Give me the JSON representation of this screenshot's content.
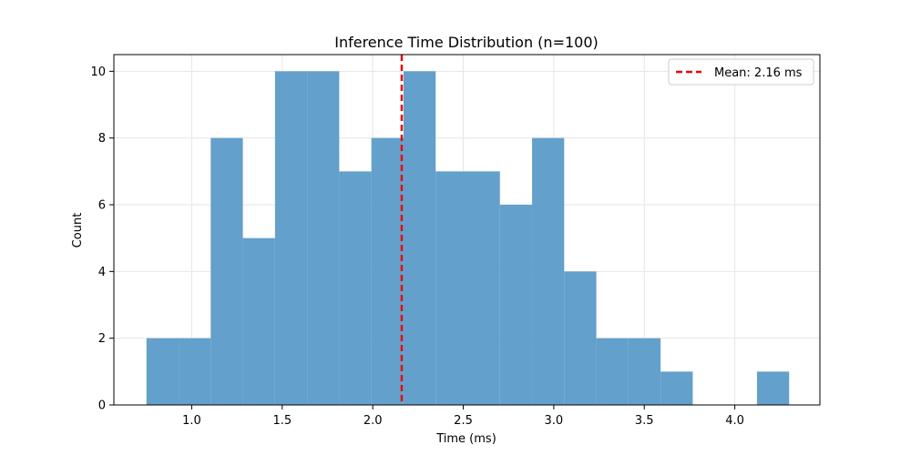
{
  "chart_data": {
    "type": "bar",
    "title": "Inference Time Distribution (n=100)",
    "xlabel": "Time (ms)",
    "ylabel": "Count",
    "bin_start": 0.75,
    "bin_width": 0.1775,
    "counts": [
      2,
      2,
      8,
      5,
      10,
      10,
      7,
      8,
      10,
      7,
      7,
      6,
      8,
      4,
      2,
      2,
      1,
      0,
      0,
      1
    ],
    "xlim": [
      0.57,
      4.47
    ],
    "ylim": [
      0,
      10.5
    ],
    "xticks": [
      1.0,
      1.5,
      2.0,
      2.5,
      3.0,
      3.5,
      4.0
    ],
    "xtick_labels": [
      "1.0",
      "1.5",
      "2.0",
      "2.5",
      "3.0",
      "3.5",
      "4.0"
    ],
    "yticks": [
      0,
      2,
      4,
      6,
      8,
      10
    ],
    "ytick_labels": [
      "0",
      "2",
      "4",
      "6",
      "8",
      "10"
    ],
    "mean_value": 2.16,
    "legend": {
      "label": "Mean: 2.16 ms",
      "placement": "top-right"
    },
    "grid": true,
    "colors": {
      "bar": "#63a0cb",
      "mean_line": "#e8090a",
      "grid": "#e6e6e6"
    }
  }
}
